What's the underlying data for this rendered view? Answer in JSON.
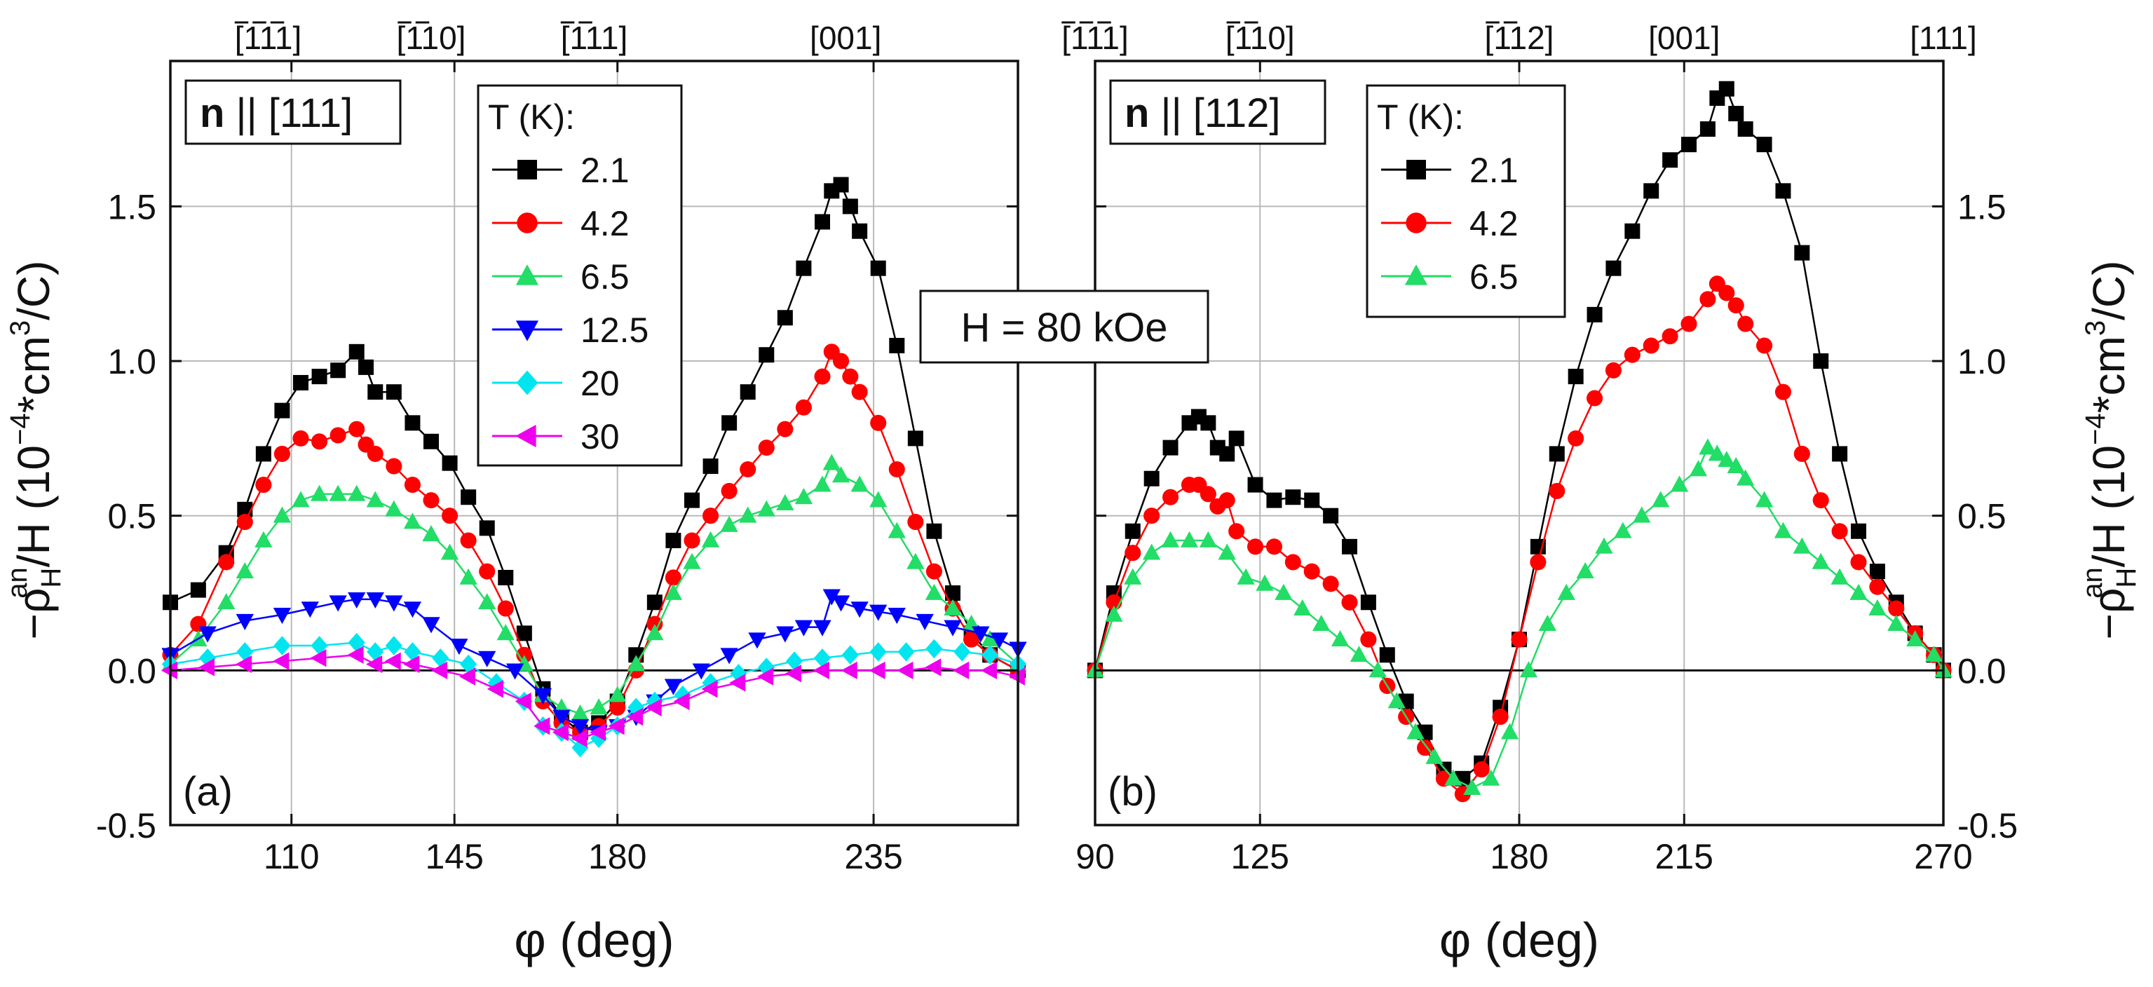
{
  "figure": {
    "field_label": "H = 80 kOe",
    "y_label": {
      "prefix": "−ρ",
      "sub": "H",
      "sup": "an",
      "middle": "/H (10",
      "exp": "−4",
      "suffix": "*cm",
      "cube": "3",
      "tail": "/C)"
    }
  },
  "series_styles": {
    "2.1": {
      "color": "#000000",
      "marker": "square"
    },
    "4.2": {
      "color": "#ff0000",
      "marker": "circle"
    },
    "6.5": {
      "color": "#22dd66",
      "marker": "triangle-up"
    },
    "12.5": {
      "color": "#0000ff",
      "marker": "triangle-down"
    },
    "20": {
      "color": "#00e5ee",
      "marker": "diamond"
    },
    "30": {
      "color": "#ee00ee",
      "marker": "triangle-left"
    }
  },
  "chart_data": [
    {
      "type": "scatter",
      "panel": "(a)",
      "title_bold": "n",
      "title_rest": " || [111]",
      "xlabel": "φ (deg)",
      "ylabel": "−ρ_H^an/H (10^−4*cm^3/C)",
      "xlim": [
        84,
        266
      ],
      "ylim": [
        -0.5,
        1.97
      ],
      "xticks": [
        110,
        145,
        180,
        235
      ],
      "yticks": [
        -0.5,
        0.0,
        0.5,
        1.0,
        1.5
      ],
      "ytick_labels": [
        "-0.5",
        "0.0",
        "0.5",
        "1.0",
        "1.5"
      ],
      "top_directions": [
        {
          "x": 105,
          "text": "[111]",
          "bars": [
            0,
            1,
            2
          ]
        },
        {
          "x": 140,
          "text": "[110]",
          "bars": [
            0,
            1
          ]
        },
        {
          "x": 175,
          "text": "[111]",
          "bars": [
            0,
            1
          ]
        },
        {
          "x": 229,
          "text": "[001]",
          "bars": []
        }
      ],
      "legend": {
        "title": "T (K):",
        "location": "upper-center"
      },
      "series": [
        {
          "name": "2.1",
          "x": [
            84,
            90,
            96,
            100,
            104,
            108,
            112,
            116,
            120,
            124,
            126,
            128,
            132,
            136,
            140,
            144,
            148,
            152,
            156,
            160,
            164,
            168,
            172,
            176,
            180,
            184,
            188,
            192,
            196,
            200,
            204,
            208,
            212,
            216,
            220,
            224,
            226,
            228,
            230,
            232,
            236,
            240,
            244,
            248,
            252,
            256,
            260,
            266
          ],
          "y": [
            0.22,
            0.26,
            0.38,
            0.52,
            0.7,
            0.84,
            0.93,
            0.95,
            0.97,
            1.03,
            0.98,
            0.9,
            0.9,
            0.8,
            0.74,
            0.67,
            0.56,
            0.46,
            0.3,
            0.12,
            -0.06,
            -0.15,
            -0.2,
            -0.17,
            -0.1,
            0.05,
            0.22,
            0.42,
            0.55,
            0.66,
            0.8,
            0.9,
            1.02,
            1.14,
            1.3,
            1.45,
            1.55,
            1.57,
            1.5,
            1.42,
            1.3,
            1.05,
            0.75,
            0.45,
            0.25,
            0.12,
            0.05,
            0.0
          ]
        },
        {
          "name": "4.2",
          "x": [
            84,
            90,
            96,
            100,
            104,
            108,
            112,
            116,
            120,
            124,
            126,
            128,
            132,
            136,
            140,
            144,
            148,
            152,
            156,
            160,
            164,
            168,
            172,
            176,
            180,
            184,
            188,
            192,
            196,
            200,
            204,
            208,
            212,
            216,
            220,
            224,
            226,
            228,
            230,
            232,
            236,
            240,
            244,
            248,
            252,
            256,
            260,
            266
          ],
          "y": [
            0.05,
            0.15,
            0.35,
            0.48,
            0.6,
            0.7,
            0.75,
            0.74,
            0.76,
            0.78,
            0.73,
            0.7,
            0.66,
            0.6,
            0.55,
            0.5,
            0.42,
            0.32,
            0.2,
            0.05,
            -0.1,
            -0.17,
            -0.2,
            -0.18,
            -0.12,
            0.0,
            0.15,
            0.3,
            0.42,
            0.5,
            0.58,
            0.65,
            0.72,
            0.78,
            0.85,
            0.95,
            1.03,
            1.0,
            0.95,
            0.9,
            0.8,
            0.65,
            0.48,
            0.32,
            0.2,
            0.1,
            0.05,
            0.0
          ]
        },
        {
          "name": "6.5",
          "x": [
            84,
            90,
            96,
            100,
            104,
            108,
            112,
            116,
            120,
            124,
            128,
            132,
            136,
            140,
            144,
            148,
            152,
            156,
            160,
            164,
            168,
            172,
            176,
            180,
            184,
            188,
            192,
            196,
            200,
            204,
            208,
            212,
            216,
            220,
            224,
            226,
            228,
            232,
            236,
            240,
            244,
            248,
            252,
            256,
            260,
            266
          ],
          "y": [
            0.02,
            0.1,
            0.22,
            0.32,
            0.42,
            0.5,
            0.55,
            0.57,
            0.57,
            0.57,
            0.55,
            0.52,
            0.48,
            0.44,
            0.38,
            0.3,
            0.22,
            0.12,
            0.02,
            -0.08,
            -0.12,
            -0.14,
            -0.12,
            -0.08,
            0.02,
            0.12,
            0.25,
            0.35,
            0.42,
            0.47,
            0.5,
            0.52,
            0.54,
            0.56,
            0.6,
            0.67,
            0.63,
            0.6,
            0.55,
            0.45,
            0.35,
            0.25,
            0.2,
            0.15,
            0.1,
            0.02
          ]
        },
        {
          "name": "12.5",
          "x": [
            84,
            92,
            100,
            108,
            114,
            120,
            124,
            128,
            132,
            136,
            140,
            146,
            152,
            158,
            164,
            168,
            172,
            176,
            180,
            184,
            188,
            192,
            198,
            204,
            210,
            216,
            220,
            224,
            226,
            228,
            232,
            236,
            240,
            246,
            252,
            258,
            262,
            266
          ],
          "y": [
            0.05,
            0.12,
            0.16,
            0.18,
            0.2,
            0.22,
            0.23,
            0.23,
            0.22,
            0.2,
            0.15,
            0.08,
            0.04,
            0.0,
            -0.08,
            -0.15,
            -0.18,
            -0.2,
            -0.18,
            -0.15,
            -0.1,
            -0.05,
            0.0,
            0.05,
            0.1,
            0.12,
            0.14,
            0.14,
            0.24,
            0.22,
            0.2,
            0.19,
            0.18,
            0.16,
            0.14,
            0.12,
            0.1,
            0.07
          ]
        },
        {
          "name": "20",
          "x": [
            84,
            92,
            100,
            108,
            116,
            124,
            128,
            132,
            136,
            142,
            148,
            154,
            160,
            164,
            168,
            172,
            176,
            180,
            184,
            188,
            194,
            200,
            206,
            212,
            218,
            224,
            230,
            236,
            242,
            248,
            254,
            260,
            266
          ],
          "y": [
            0.02,
            0.04,
            0.06,
            0.08,
            0.08,
            0.09,
            0.06,
            0.08,
            0.06,
            0.04,
            0.02,
            -0.04,
            -0.1,
            -0.18,
            -0.2,
            -0.25,
            -0.22,
            -0.18,
            -0.12,
            -0.1,
            -0.08,
            -0.04,
            -0.01,
            0.01,
            0.03,
            0.04,
            0.05,
            0.06,
            0.06,
            0.07,
            0.06,
            0.05,
            0.02
          ]
        },
        {
          "name": "30",
          "x": [
            84,
            92,
            100,
            108,
            116,
            124,
            128,
            132,
            136,
            142,
            148,
            154,
            160,
            164,
            168,
            172,
            176,
            180,
            184,
            188,
            194,
            200,
            206,
            212,
            218,
            224,
            230,
            236,
            242,
            248,
            254,
            260,
            266
          ],
          "y": [
            0.0,
            0.01,
            0.02,
            0.03,
            0.04,
            0.05,
            0.02,
            0.03,
            0.02,
            0.0,
            -0.02,
            -0.06,
            -0.1,
            -0.18,
            -0.2,
            -0.22,
            -0.2,
            -0.18,
            -0.15,
            -0.12,
            -0.1,
            -0.06,
            -0.04,
            -0.02,
            -0.01,
            0.0,
            0.0,
            0.0,
            0.0,
            0.01,
            0.0,
            0.0,
            -0.02
          ]
        }
      ]
    },
    {
      "type": "scatter",
      "panel": "(b)",
      "title_bold": "n",
      "title_rest": " || [112]",
      "xlabel": "φ (deg)",
      "ylabel": "−ρ_H^an/H (10^−4*cm^3/C)",
      "xlim": [
        90,
        270
      ],
      "ylim": [
        -0.5,
        1.97
      ],
      "xticks": [
        90,
        125,
        180,
        215,
        270
      ],
      "yticks": [
        -0.5,
        0.0,
        0.5,
        1.0,
        1.5
      ],
      "ytick_labels": [
        "-0.5",
        "0.0",
        "0.5",
        "1.0",
        "1.5"
      ],
      "top_directions": [
        {
          "x": 90,
          "text": "[111]",
          "bars": [
            0,
            1,
            2
          ]
        },
        {
          "x": 125,
          "text": "[110]",
          "bars": [
            0,
            1
          ]
        },
        {
          "x": 180,
          "text": "[112]",
          "bars": [
            0,
            1
          ]
        },
        {
          "x": 215,
          "text": "[001]",
          "bars": []
        },
        {
          "x": 270,
          "text": "[111]",
          "bars": []
        }
      ],
      "legend": {
        "title": "T (K):",
        "location": "upper-right"
      },
      "series": [
        {
          "name": "2.1",
          "x": [
            90,
            94,
            98,
            102,
            106,
            110,
            112,
            114,
            116,
            118,
            120,
            124,
            128,
            132,
            136,
            140,
            144,
            148,
            152,
            156,
            160,
            164,
            168,
            172,
            176,
            180,
            184,
            188,
            192,
            196,
            200,
            204,
            208,
            212,
            216,
            220,
            222,
            224,
            226,
            228,
            232,
            236,
            240,
            244,
            248,
            252,
            256,
            260,
            264,
            268,
            270
          ],
          "y": [
            0.0,
            0.25,
            0.45,
            0.62,
            0.72,
            0.8,
            0.82,
            0.8,
            0.72,
            0.7,
            0.75,
            0.6,
            0.55,
            0.56,
            0.55,
            0.5,
            0.4,
            0.22,
            0.05,
            -0.1,
            -0.2,
            -0.32,
            -0.35,
            -0.3,
            -0.12,
            0.1,
            0.4,
            0.7,
            0.95,
            1.15,
            1.3,
            1.42,
            1.55,
            1.65,
            1.7,
            1.75,
            1.85,
            1.88,
            1.8,
            1.75,
            1.7,
            1.55,
            1.35,
            1.0,
            0.7,
            0.45,
            0.32,
            0.22,
            0.12,
            0.05,
            0.0
          ]
        },
        {
          "name": "4.2",
          "x": [
            90,
            94,
            98,
            102,
            106,
            110,
            112,
            114,
            116,
            118,
            120,
            124,
            128,
            132,
            136,
            140,
            144,
            148,
            152,
            156,
            160,
            164,
            168,
            172,
            176,
            180,
            184,
            188,
            192,
            196,
            200,
            204,
            208,
            212,
            216,
            220,
            222,
            224,
            226,
            228,
            232,
            236,
            240,
            244,
            248,
            252,
            256,
            260,
            264,
            268,
            270
          ],
          "y": [
            0.0,
            0.22,
            0.38,
            0.5,
            0.56,
            0.6,
            0.6,
            0.57,
            0.53,
            0.55,
            0.45,
            0.4,
            0.4,
            0.35,
            0.32,
            0.28,
            0.22,
            0.1,
            -0.05,
            -0.15,
            -0.25,
            -0.35,
            -0.4,
            -0.32,
            -0.15,
            0.1,
            0.35,
            0.58,
            0.75,
            0.88,
            0.97,
            1.02,
            1.05,
            1.08,
            1.12,
            1.2,
            1.25,
            1.22,
            1.18,
            1.12,
            1.05,
            0.9,
            0.7,
            0.55,
            0.45,
            0.35,
            0.27,
            0.2,
            0.12,
            0.05,
            0.0
          ]
        },
        {
          "name": "6.5",
          "x": [
            90,
            94,
            98,
            102,
            106,
            110,
            114,
            118,
            122,
            126,
            130,
            134,
            138,
            142,
            146,
            150,
            154,
            158,
            162,
            166,
            170,
            174,
            178,
            182,
            186,
            190,
            194,
            198,
            202,
            206,
            210,
            214,
            218,
            220,
            222,
            224,
            226,
            228,
            232,
            236,
            240,
            244,
            248,
            252,
            256,
            260,
            264,
            268,
            270
          ],
          "y": [
            0.0,
            0.18,
            0.3,
            0.38,
            0.42,
            0.42,
            0.42,
            0.38,
            0.3,
            0.28,
            0.25,
            0.2,
            0.15,
            0.1,
            0.05,
            0.0,
            -0.1,
            -0.2,
            -0.28,
            -0.35,
            -0.38,
            -0.35,
            -0.2,
            0.0,
            0.15,
            0.25,
            0.32,
            0.4,
            0.45,
            0.5,
            0.55,
            0.6,
            0.65,
            0.72,
            0.7,
            0.68,
            0.66,
            0.62,
            0.55,
            0.45,
            0.4,
            0.35,
            0.3,
            0.25,
            0.2,
            0.15,
            0.1,
            0.05,
            0.0
          ]
        }
      ]
    }
  ]
}
